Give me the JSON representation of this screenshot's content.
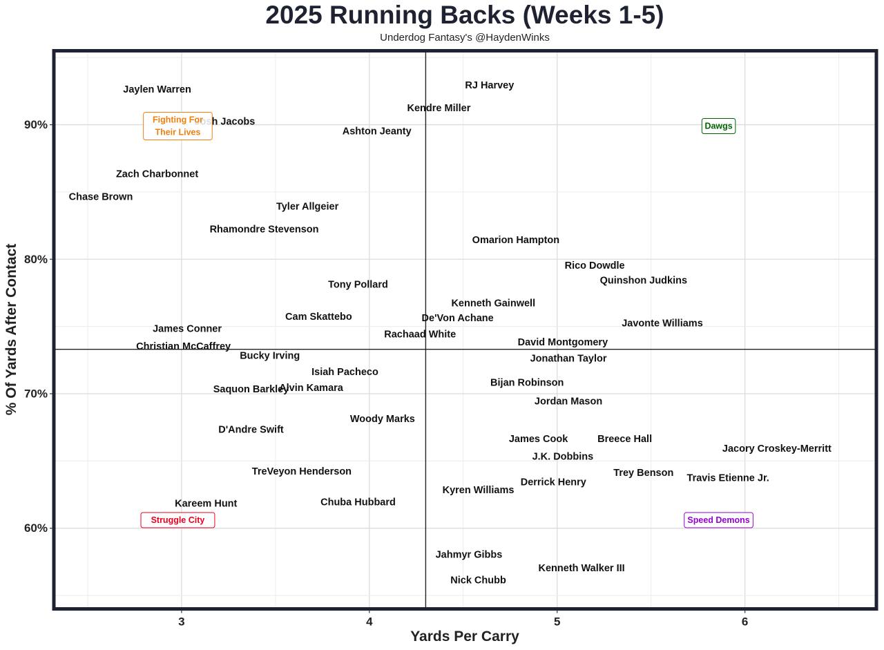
{
  "chart_data": {
    "type": "scatter",
    "title": "2025 Running Backs (Weeks 1-5)",
    "subtitle": "Underdog Fantasy's @HaydenWinks",
    "xlabel": "Yards Per Carry",
    "ylabel": "% Of Yards After Contact",
    "xlim": [
      2.32,
      6.7
    ],
    "ylim": [
      54,
      95.5
    ],
    "x_ticks": [
      {
        "value": 3,
        "label": "3"
      },
      {
        "value": 4,
        "label": "4"
      },
      {
        "value": 5,
        "label": "5"
      },
      {
        "value": 6,
        "label": "6"
      }
    ],
    "y_ticks": [
      {
        "value": 60,
        "label": "60%"
      },
      {
        "value": 70,
        "label": "70%"
      },
      {
        "value": 80,
        "label": "80%"
      },
      {
        "value": 90,
        "label": "90%"
      }
    ],
    "grid": true,
    "reference_lines": {
      "x": 4.3,
      "y": 73.3
    },
    "points": [
      {
        "name": "Jaylen Warren",
        "x": 2.87,
        "y": 92.6
      },
      {
        "name": "RJ Harvey",
        "x": 4.64,
        "y": 92.9
      },
      {
        "name": "Kendre Miller",
        "x": 4.37,
        "y": 91.2
      },
      {
        "name": "Josh Jacobs",
        "x": 3.23,
        "y": 90.2
      },
      {
        "name": "Ashton Jeanty",
        "x": 4.04,
        "y": 89.5
      },
      {
        "name": "Zach Charbonnet",
        "x": 2.87,
        "y": 86.3
      },
      {
        "name": "Chase Brown",
        "x": 2.57,
        "y": 84.6
      },
      {
        "name": "Tyler Allgeier",
        "x": 3.67,
        "y": 83.9
      },
      {
        "name": "Rhamondre Stevenson",
        "x": 3.44,
        "y": 82.2
      },
      {
        "name": "Omarion Hampton",
        "x": 4.78,
        "y": 81.4
      },
      {
        "name": "Rico Dowdle",
        "x": 5.2,
        "y": 79.5
      },
      {
        "name": "Quinshon Judkins",
        "x": 5.46,
        "y": 78.4
      },
      {
        "name": "Tony Pollard",
        "x": 3.94,
        "y": 78.1
      },
      {
        "name": "Kenneth Gainwell",
        "x": 4.66,
        "y": 76.7
      },
      {
        "name": "Cam Skattebo",
        "x": 3.73,
        "y": 75.7
      },
      {
        "name": "De'Von Achane",
        "x": 4.47,
        "y": 75.6
      },
      {
        "name": "Javonte Williams",
        "x": 5.56,
        "y": 75.2
      },
      {
        "name": "James Conner",
        "x": 3.03,
        "y": 74.8
      },
      {
        "name": "Rachaad White",
        "x": 4.27,
        "y": 74.4
      },
      {
        "name": "David Montgomery",
        "x": 5.03,
        "y": 73.8
      },
      {
        "name": "Christian McCaffrey",
        "x": 3.01,
        "y": 73.5
      },
      {
        "name": "Bucky Irving",
        "x": 3.47,
        "y": 72.8
      },
      {
        "name": "Jonathan Taylor",
        "x": 5.06,
        "y": 72.6
      },
      {
        "name": "Isiah Pacheco",
        "x": 3.87,
        "y": 71.6
      },
      {
        "name": "Bijan Robinson",
        "x": 4.84,
        "y": 70.8
      },
      {
        "name": "Saquon Barkley",
        "x": 3.37,
        "y": 70.3
      },
      {
        "name": "Alvin Kamara",
        "x": 3.69,
        "y": 70.4
      },
      {
        "name": "Jordan Mason",
        "x": 5.06,
        "y": 69.4
      },
      {
        "name": "Woody Marks",
        "x": 4.07,
        "y": 68.1
      },
      {
        "name": "D'Andre Swift",
        "x": 3.37,
        "y": 67.3
      },
      {
        "name": "James Cook",
        "x": 4.9,
        "y": 66.6
      },
      {
        "name": "Breece Hall",
        "x": 5.36,
        "y": 66.6
      },
      {
        "name": "Jacory Croskey-Merritt",
        "x": 6.17,
        "y": 65.9
      },
      {
        "name": "J.K. Dobbins",
        "x": 5.03,
        "y": 65.3
      },
      {
        "name": "Trey Benson",
        "x": 5.46,
        "y": 64.1
      },
      {
        "name": "TreVeyon Henderson",
        "x": 3.64,
        "y": 64.2
      },
      {
        "name": "Travis Etienne Jr.",
        "x": 5.91,
        "y": 63.7
      },
      {
        "name": "Derrick Henry",
        "x": 4.98,
        "y": 63.4
      },
      {
        "name": "Kyren Williams",
        "x": 4.58,
        "y": 62.8
      },
      {
        "name": "Kareem Hunt",
        "x": 3.13,
        "y": 61.8
      },
      {
        "name": "Chuba Hubbard",
        "x": 3.94,
        "y": 61.9
      },
      {
        "name": "Jahmyr Gibbs",
        "x": 4.53,
        "y": 58.0
      },
      {
        "name": "Kenneth Walker III",
        "x": 5.13,
        "y": 57.0
      },
      {
        "name": "Nick Chubb",
        "x": 4.58,
        "y": 56.1
      }
    ],
    "quadrant_labels": [
      {
        "lines": [
          "Fighting For",
          "Their Lives"
        ],
        "x": 2.98,
        "y": 89.9,
        "color": "#f07f0e"
      },
      {
        "lines": [
          "Dawgs"
        ],
        "x": 5.86,
        "y": 89.9,
        "color": "#006400"
      },
      {
        "lines": [
          "Struggle City"
        ],
        "x": 2.98,
        "y": 60.6,
        "color": "#e8001c"
      },
      {
        "lines": [
          "Speed Demons"
        ],
        "x": 5.86,
        "y": 60.6,
        "color": "#9400d3"
      }
    ]
  }
}
